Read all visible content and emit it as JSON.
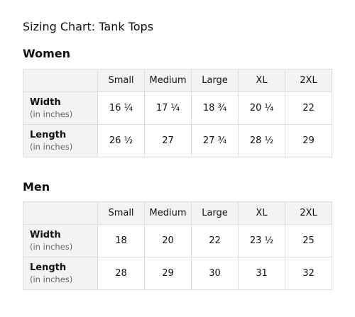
{
  "title": "Sizing Chart: Tank Tops",
  "sizes": [
    "Small",
    "Medium",
    "Large",
    "XL",
    "2XL"
  ],
  "women": {
    "heading": "Women",
    "rows": [
      {
        "label": "Width",
        "unit": "(in inches)",
        "values": [
          "16 ¼",
          "17 ¼",
          "18 ¾",
          "20 ¼",
          "22"
        ]
      },
      {
        "label": "Length",
        "unit": "(in inches)",
        "values": [
          "26 ½",
          "27",
          "27 ¾",
          "28 ½",
          "29"
        ]
      }
    ]
  },
  "men": {
    "heading": "Men",
    "rows": [
      {
        "label": "Width",
        "unit": "(in inches)",
        "values": [
          "18",
          "20",
          "22",
          "23 ½",
          "25"
        ]
      },
      {
        "label": "Length",
        "unit": "(in inches)",
        "values": [
          "28",
          "29",
          "30",
          "31",
          "32"
        ]
      }
    ]
  }
}
